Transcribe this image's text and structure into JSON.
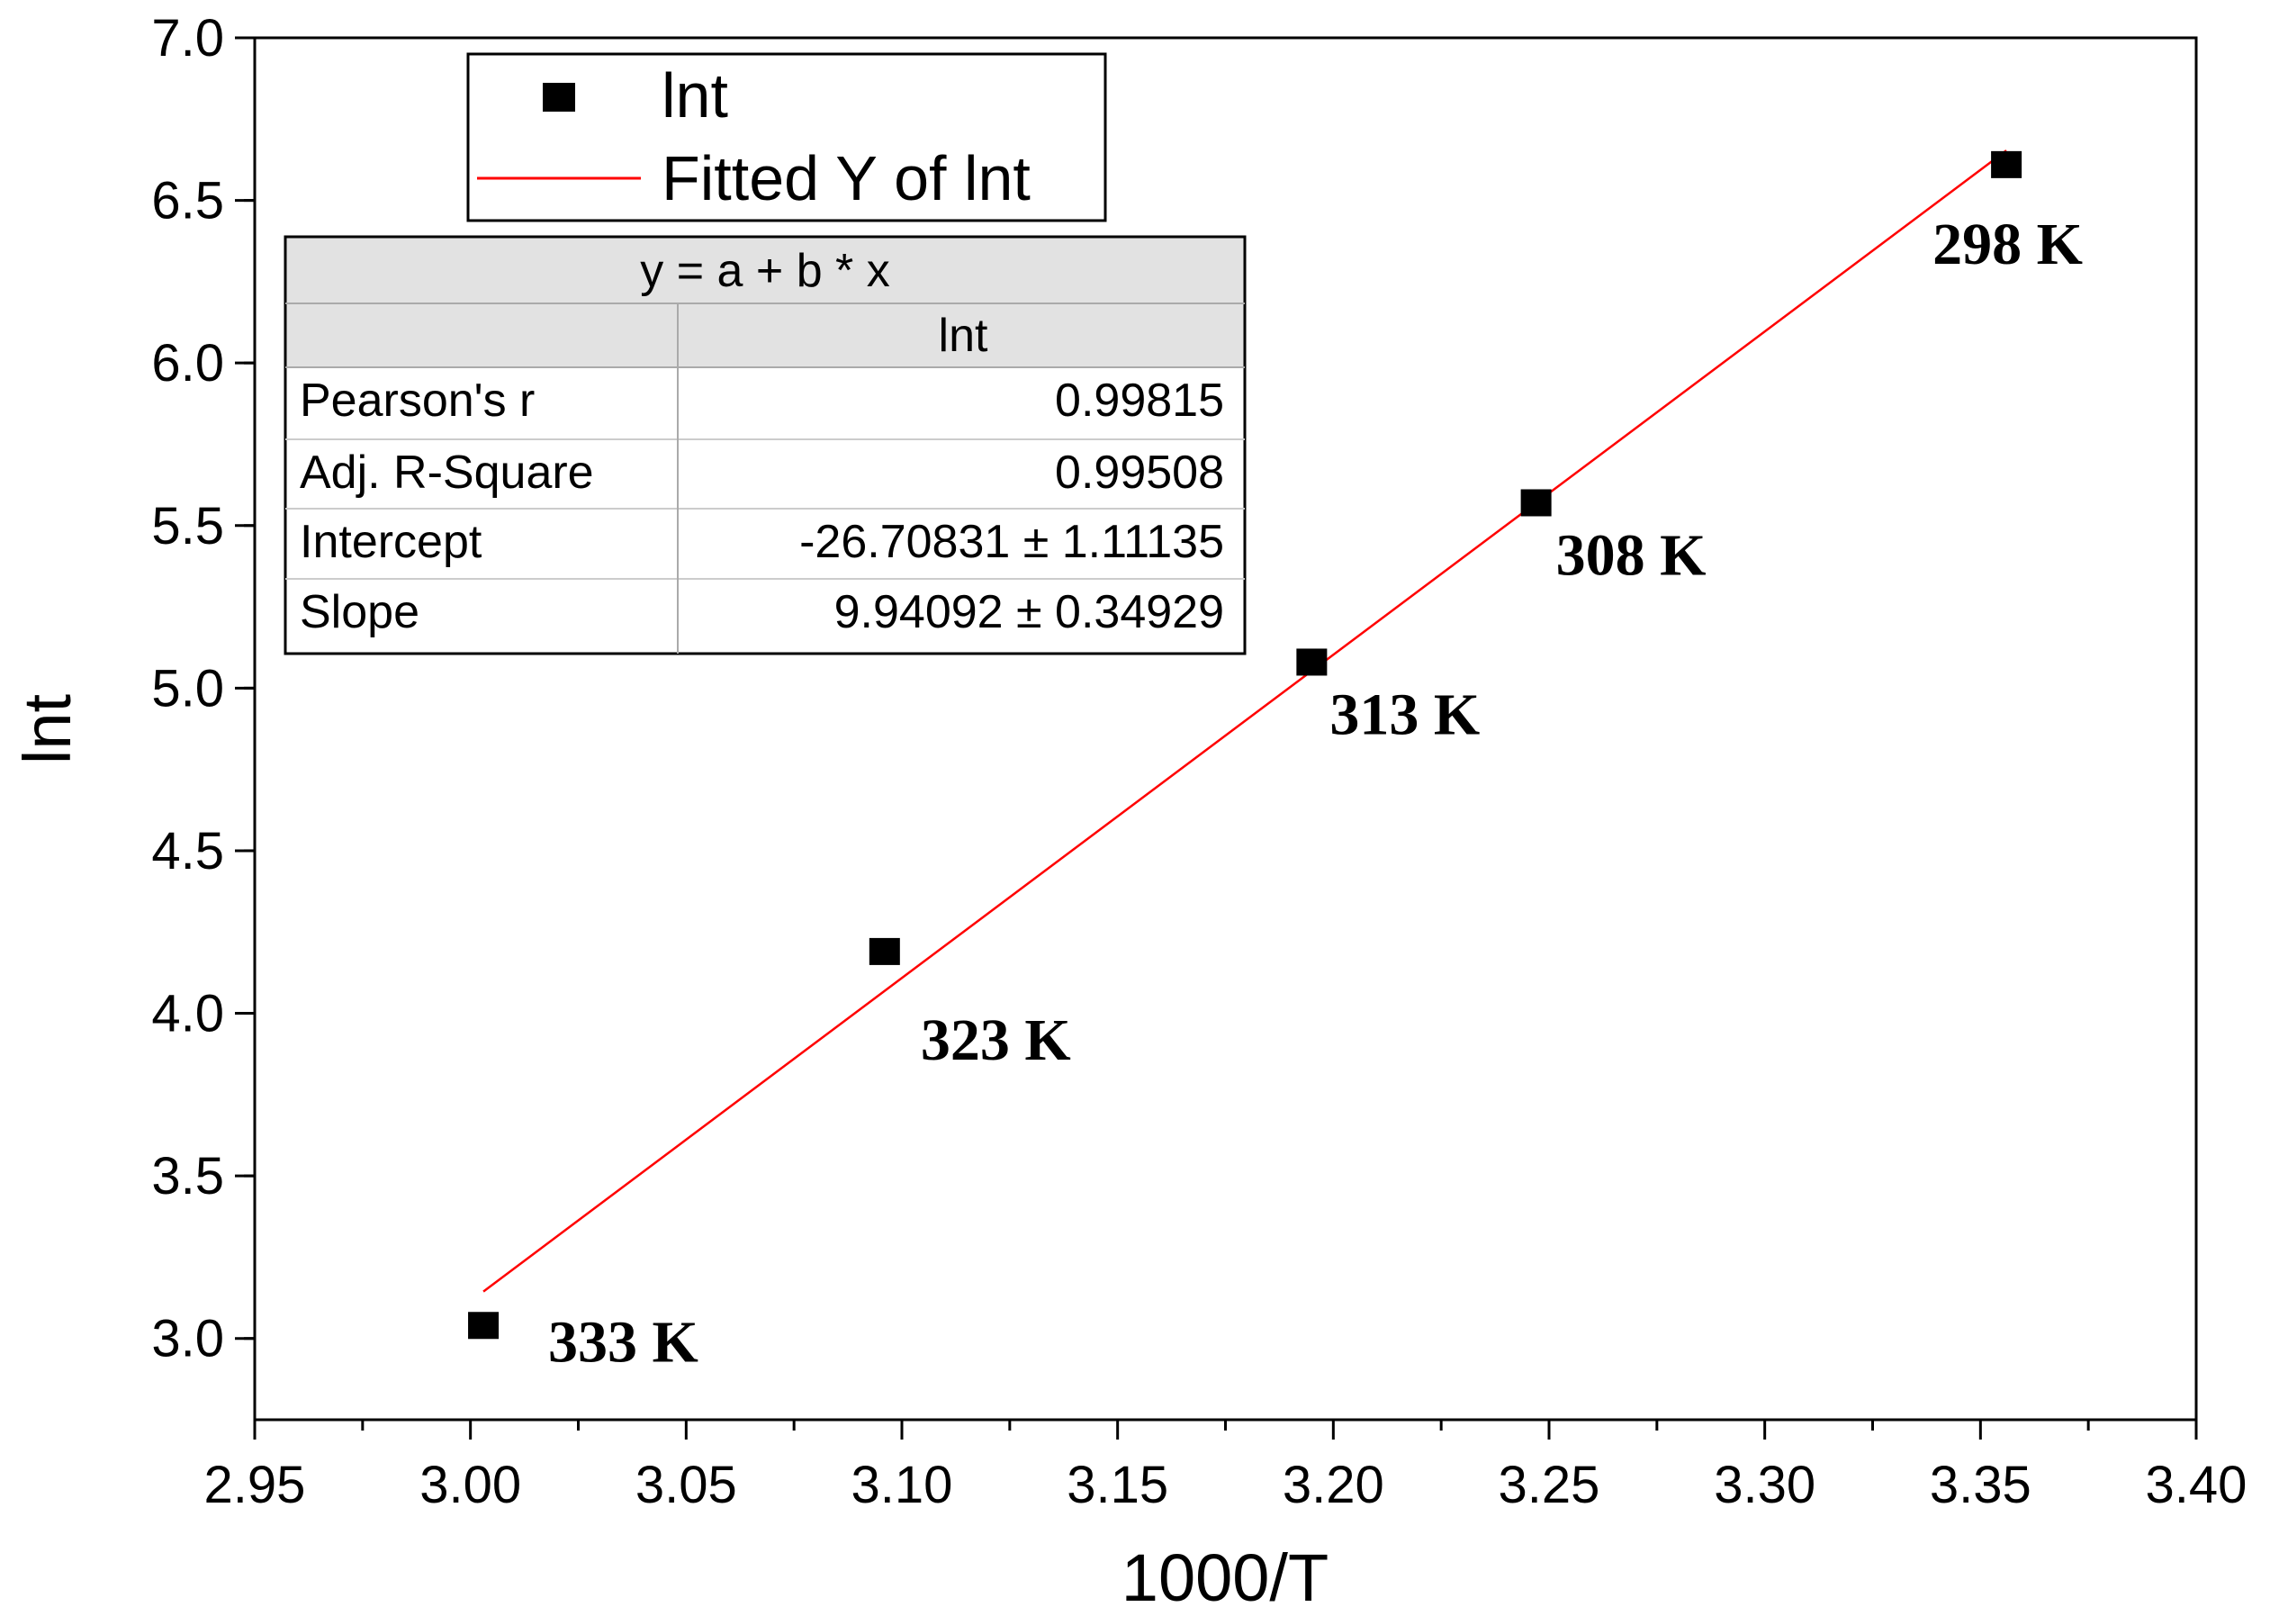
{
  "chart_data": {
    "type": "scatter",
    "xlabel": "1000/T",
    "ylabel": "lnt",
    "xlim": [
      2.95,
      3.4
    ],
    "ylim": [
      2.75,
      7.0
    ],
    "xticks": [
      2.95,
      3.0,
      3.05,
      3.1,
      3.15,
      3.2,
      3.25,
      3.3,
      3.35,
      3.4
    ],
    "xtick_labels": [
      "2.95",
      "3.00",
      "3.05",
      "3.10",
      "3.15",
      "3.20",
      "3.25",
      "3.30",
      "3.35",
      "3.40"
    ],
    "yticks": [
      3.0,
      3.5,
      4.0,
      4.5,
      5.0,
      5.5,
      6.0,
      6.5,
      7.0
    ],
    "ytick_labels": [
      "3.0",
      "3.5",
      "4.0",
      "4.5",
      "5.0",
      "5.5",
      "6.0",
      "6.5",
      "7.0"
    ],
    "series": [
      {
        "name": "lnt",
        "marker": "square",
        "color": "#000000",
        "points": [
          {
            "x": 3.003,
            "y": 3.04,
            "label": "333 K"
          },
          {
            "x": 3.096,
            "y": 4.19,
            "label": "323 K"
          },
          {
            "x": 3.195,
            "y": 5.08,
            "label": "313 K"
          },
          {
            "x": 3.247,
            "y": 5.57,
            "label": "308 K"
          },
          {
            "x": 3.356,
            "y": 6.61,
            "label": "298 K"
          }
        ]
      },
      {
        "name": "Fitted Y of lnt",
        "type": "line",
        "color": "#ff0000",
        "intercept": -26.70831,
        "slope": 9.94092,
        "x_range": [
          3.003,
          3.356
        ]
      }
    ],
    "legend": {
      "position": "top-left",
      "entries": [
        "lnt",
        "Fitted Y of lnt"
      ]
    },
    "fit_table": {
      "equation": "y = a + b * x",
      "column_header": "lnt",
      "rows": [
        {
          "name": "Pearson's r",
          "value": "0.99815"
        },
        {
          "name": "Adj. R-Square",
          "value": "0.99508"
        },
        {
          "name": "Intercept",
          "value": "-26.70831 ± 1.11135"
        },
        {
          "name": "Slope",
          "value": "9.94092 ± 0.34929"
        }
      ]
    }
  }
}
